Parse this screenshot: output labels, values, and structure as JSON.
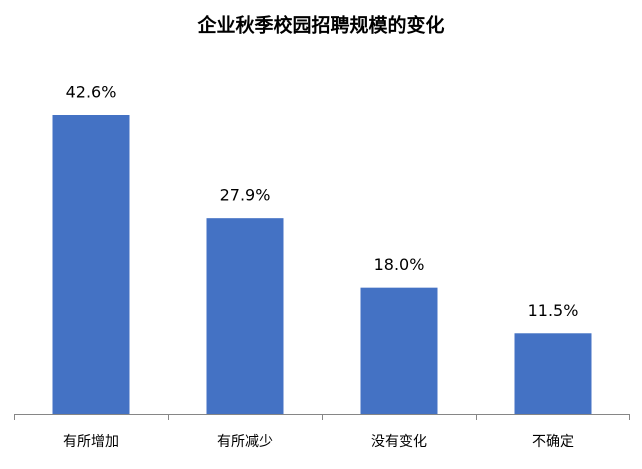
{
  "chart_data": {
    "type": "bar",
    "title": "企业秋季校园招聘规模的变化",
    "categories": [
      "有所增加",
      "有所减少",
      "没有变化",
      "不确定"
    ],
    "values": [
      42.6,
      27.9,
      18.0,
      11.5
    ],
    "value_labels": [
      "42.6%",
      "27.9%",
      "18.0%",
      "11.5%"
    ],
    "color": "#4472c4"
  }
}
